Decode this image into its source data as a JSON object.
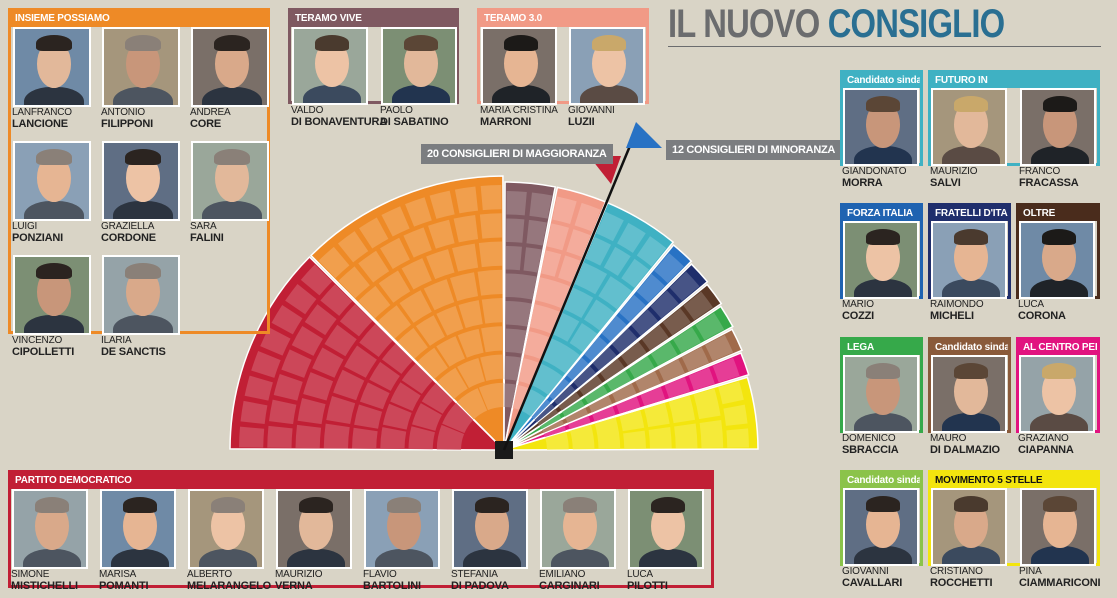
{
  "title": {
    "part1": "IL NUOVO",
    "part2": "CONSIGLIO"
  },
  "labels": {
    "majority": "20 CONSIGLIERI DI MAGGIORANZA",
    "minority": "12 CONSIGLIERI DI MINORANZA"
  },
  "seats": {
    "majority": 20,
    "minority": 12,
    "total": 32
  },
  "colors": {
    "insieme_possiamo": "#ee8a26",
    "teramo_vive": "#7f5961",
    "teramo_3": "#f19a86",
    "partito_democratico": "#c11f35",
    "futuro_in": "#3fb1c3",
    "forza_italia": "#1f63b1",
    "fratelli_ditalia": "#1f2e6c",
    "oltre": "#4a2c1c",
    "lega": "#36a94a",
    "al_centro": "#e1137f",
    "movimento5": "#f3e50e"
  },
  "groups": [
    {
      "key": "insieme",
      "title": "INSIEME POSSIAMO",
      "color": "#ee8a26",
      "members": [
        {
          "first": "LANFRANCO",
          "last": "LANCIONE"
        },
        {
          "first": "ANTONIO",
          "last": "FILIPPONI"
        },
        {
          "first": "ANDREA",
          "last": "CORE"
        },
        {
          "first": "LUIGI",
          "last": "PONZIANI"
        },
        {
          "first": "GRAZIELLA",
          "last": "CORDONE"
        },
        {
          "first": "SARA",
          "last": "FALINI"
        },
        {
          "first": "VINCENZO",
          "last": "CIPOLLETTI"
        },
        {
          "first": "ILARIA",
          "last": "DE SANCTIS"
        }
      ]
    },
    {
      "key": "vive",
      "title": "TERAMO VIVE",
      "color": "#7f5961",
      "members": [
        {
          "first": "VALDO",
          "last": "DI BONAVENTURA"
        },
        {
          "first": "PAOLO",
          "last": "DI SABATINO"
        }
      ]
    },
    {
      "key": "t3",
      "title": "TERAMO 3.0",
      "color": "#f19a86",
      "members": [
        {
          "first": "MARIA CRISTINA",
          "last": "MARRONI"
        },
        {
          "first": "GIOVANNI",
          "last": "LUZII"
        }
      ]
    },
    {
      "key": "pd",
      "title": "PARTITO DEMOCRATICO",
      "color": "#c11f35",
      "members": [
        {
          "first": "SIMONE",
          "last": "MISTICHELLI"
        },
        {
          "first": "MARISA",
          "last": "POMANTI"
        },
        {
          "first": "ALBERTO",
          "last": "MELARANGELO"
        },
        {
          "first": "MAURIZIO",
          "last": "VERNA"
        },
        {
          "first": "FLAVIO",
          "last": "BARTOLINI"
        },
        {
          "first": "STEFANIA",
          "last": "DI PADOVA"
        },
        {
          "first": "EMILIANO",
          "last": "CARGINARI"
        },
        {
          "first": "LUCA",
          "last": "PILOTTI"
        }
      ]
    },
    {
      "key": "cand1",
      "title": "Candidato sindaco",
      "color": "#3fb1c3",
      "members": [
        {
          "first": "GIANDONATO",
          "last": "MORRA"
        }
      ]
    },
    {
      "key": "futuro",
      "title": "FUTURO IN",
      "color": "#3fb1c3",
      "members": [
        {
          "first": "MAURIZIO",
          "last": "SALVI"
        },
        {
          "first": "FRANCO",
          "last": "FRACASSA"
        }
      ]
    },
    {
      "key": "fi",
      "title": "FORZA ITALIA",
      "color": "#1f63b1",
      "members": [
        {
          "first": "MARIO",
          "last": "COZZI"
        }
      ]
    },
    {
      "key": "fdi",
      "title": "FRATELLI D'ITALIA",
      "color": "#1f2e6c",
      "members": [
        {
          "first": "RAIMONDO",
          "last": "MICHELI"
        }
      ]
    },
    {
      "key": "oltre",
      "title": "OLTRE",
      "color": "#4a2c1c",
      "members": [
        {
          "first": "LUCA",
          "last": "CORONA"
        }
      ]
    },
    {
      "key": "lega",
      "title": "LEGA",
      "color": "#36a94a",
      "members": [
        {
          "first": "DOMENICO",
          "last": "SBRACCIA"
        }
      ]
    },
    {
      "key": "cand2",
      "title": "Candidato sindaco",
      "color": "#8a5a3a",
      "members": [
        {
          "first": "MAURO",
          "last": "DI DALMAZIO"
        }
      ]
    },
    {
      "key": "centro",
      "title": "AL CENTRO PER T.",
      "color": "#e1137f",
      "members": [
        {
          "first": "GRAZIANO",
          "last": "CIAPANNA"
        }
      ]
    },
    {
      "key": "cand3",
      "title": "Candidato sindaco",
      "color": "#8bc34a",
      "members": [
        {
          "first": "GIOVANNI",
          "last": "CAVALLARI"
        }
      ]
    },
    {
      "key": "m5s",
      "title": "MOVIMENTO 5 STELLE",
      "color": "#f3e50e",
      "members": [
        {
          "first": "CRISTIANO",
          "last": "ROCCHETTI"
        },
        {
          "first": "PINA",
          "last": "CIAMMARICONI"
        }
      ]
    }
  ],
  "hemicycle": {
    "slices": [
      {
        "group": "PARTITO DEMOCRATICO",
        "seats": 8,
        "color": "#c11f35"
      },
      {
        "group": "INSIEME POSSIAMO",
        "seats": 8,
        "color": "#ee8a26"
      },
      {
        "group": "TERAMO VIVE",
        "seats": 2,
        "color": "#7f5961"
      },
      {
        "group": "TERAMO 3.0",
        "seats": 2,
        "color": "#f19a86"
      },
      {
        "group": "FUTURO IN",
        "seats": 3,
        "color": "#3fb1c3"
      },
      {
        "group": "FORZA ITALIA",
        "seats": 1,
        "color": "#2872c4"
      },
      {
        "group": "FRATELLI D'ITALIA",
        "seats": 1,
        "color": "#1f2e6c"
      },
      {
        "group": "OLTRE",
        "seats": 1,
        "color": "#5a3826"
      },
      {
        "group": "LEGA",
        "seats": 1,
        "color": "#36a94a"
      },
      {
        "group": "Candidato sindaco",
        "seats": 1,
        "color": "#a06a4a"
      },
      {
        "group": "AL CENTRO PER T.",
        "seats": 1,
        "color": "#e1137f"
      },
      {
        "group": "MOVIMENTO 5 STELLE",
        "seats": 3,
        "color": "#f3e50e"
      }
    ]
  }
}
